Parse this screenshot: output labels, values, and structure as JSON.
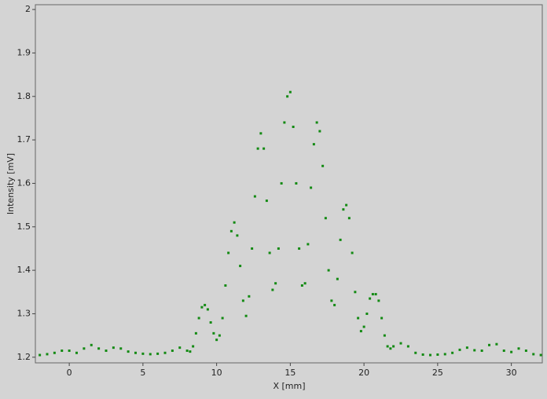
{
  "chart_data": {
    "type": "scatter",
    "xlabel": "X [mm]",
    "ylabel": "Intensity [mV]",
    "color": "#138a13",
    "x": [
      -2,
      -1.5,
      -1,
      -0.5,
      0,
      0.5,
      1,
      1.5,
      2,
      2.5,
      3,
      3.5,
      4,
      4.5,
      5,
      5.5,
      6,
      6.5,
      7,
      7.5,
      8.0,
      8.2,
      8.4,
      8.6,
      8.8,
      9.0,
      9.2,
      9.4,
      9.6,
      9.8,
      10.0,
      10.2,
      10.4,
      10.6,
      10.8,
      11.0,
      11.2,
      11.4,
      11.6,
      11.8,
      12.0,
      12.2,
      12.4,
      12.6,
      12.8,
      13.0,
      13.2,
      13.4,
      13.6,
      13.8,
      14.0,
      14.2,
      14.4,
      14.6,
      14.8,
      15.0,
      15.2,
      15.4,
      15.6,
      15.8,
      16.0,
      16.2,
      16.4,
      16.6,
      16.8,
      17.0,
      17.2,
      17.4,
      17.6,
      17.8,
      18.0,
      18.2,
      18.4,
      18.6,
      18.8,
      19.0,
      19.2,
      19.4,
      19.6,
      19.8,
      20.0,
      20.2,
      20.4,
      20.6,
      20.8,
      21.0,
      21.2,
      21.4,
      21.6,
      21.8,
      22.0,
      22.5,
      23,
      23.5,
      24,
      24.5,
      25,
      25.5,
      26,
      26.5,
      27,
      27.5,
      28,
      28.5,
      29,
      29.5,
      30,
      30.5,
      31,
      31.5,
      32
    ],
    "values": [
      1.205,
      1.207,
      1.21,
      1.215,
      1.215,
      1.21,
      1.22,
      1.228,
      1.22,
      1.215,
      1.222,
      1.22,
      1.213,
      1.21,
      1.208,
      1.207,
      1.208,
      1.21,
      1.215,
      1.222,
      1.215,
      1.213,
      1.225,
      1.255,
      1.29,
      1.315,
      1.32,
      1.31,
      1.28,
      1.255,
      1.24,
      1.25,
      1.29,
      1.365,
      1.44,
      1.49,
      1.51,
      1.48,
      1.41,
      1.33,
      1.295,
      1.34,
      1.45,
      1.57,
      1.68,
      1.715,
      1.68,
      1.56,
      1.44,
      1.355,
      1.37,
      1.45,
      1.6,
      1.74,
      1.8,
      1.81,
      1.73,
      1.6,
      1.45,
      1.365,
      1.37,
      1.46,
      1.59,
      1.69,
      1.74,
      1.72,
      1.64,
      1.52,
      1.4,
      1.33,
      1.32,
      1.38,
      1.47,
      1.54,
      1.55,
      1.52,
      1.44,
      1.35,
      1.29,
      1.26,
      1.27,
      1.3,
      1.335,
      1.345,
      1.345,
      1.33,
      1.29,
      1.25,
      1.225,
      1.22,
      1.225,
      1.232,
      1.225,
      1.21,
      1.206,
      1.205,
      1.206,
      1.207,
      1.21,
      1.217,
      1.222,
      1.216,
      1.215,
      1.228,
      1.23,
      1.215,
      1.212,
      1.22,
      1.215,
      1.207,
      1.205
    ],
    "xlim": [
      -2.3,
      32.1
    ],
    "xticks": [
      0,
      5,
      10,
      15,
      20,
      25,
      30
    ],
    "ylim": [
      1.187,
      2.011
    ],
    "yticks": [
      1.2,
      1.3,
      1.4,
      1.5,
      1.6,
      1.7,
      1.8,
      1.9,
      2
    ]
  }
}
